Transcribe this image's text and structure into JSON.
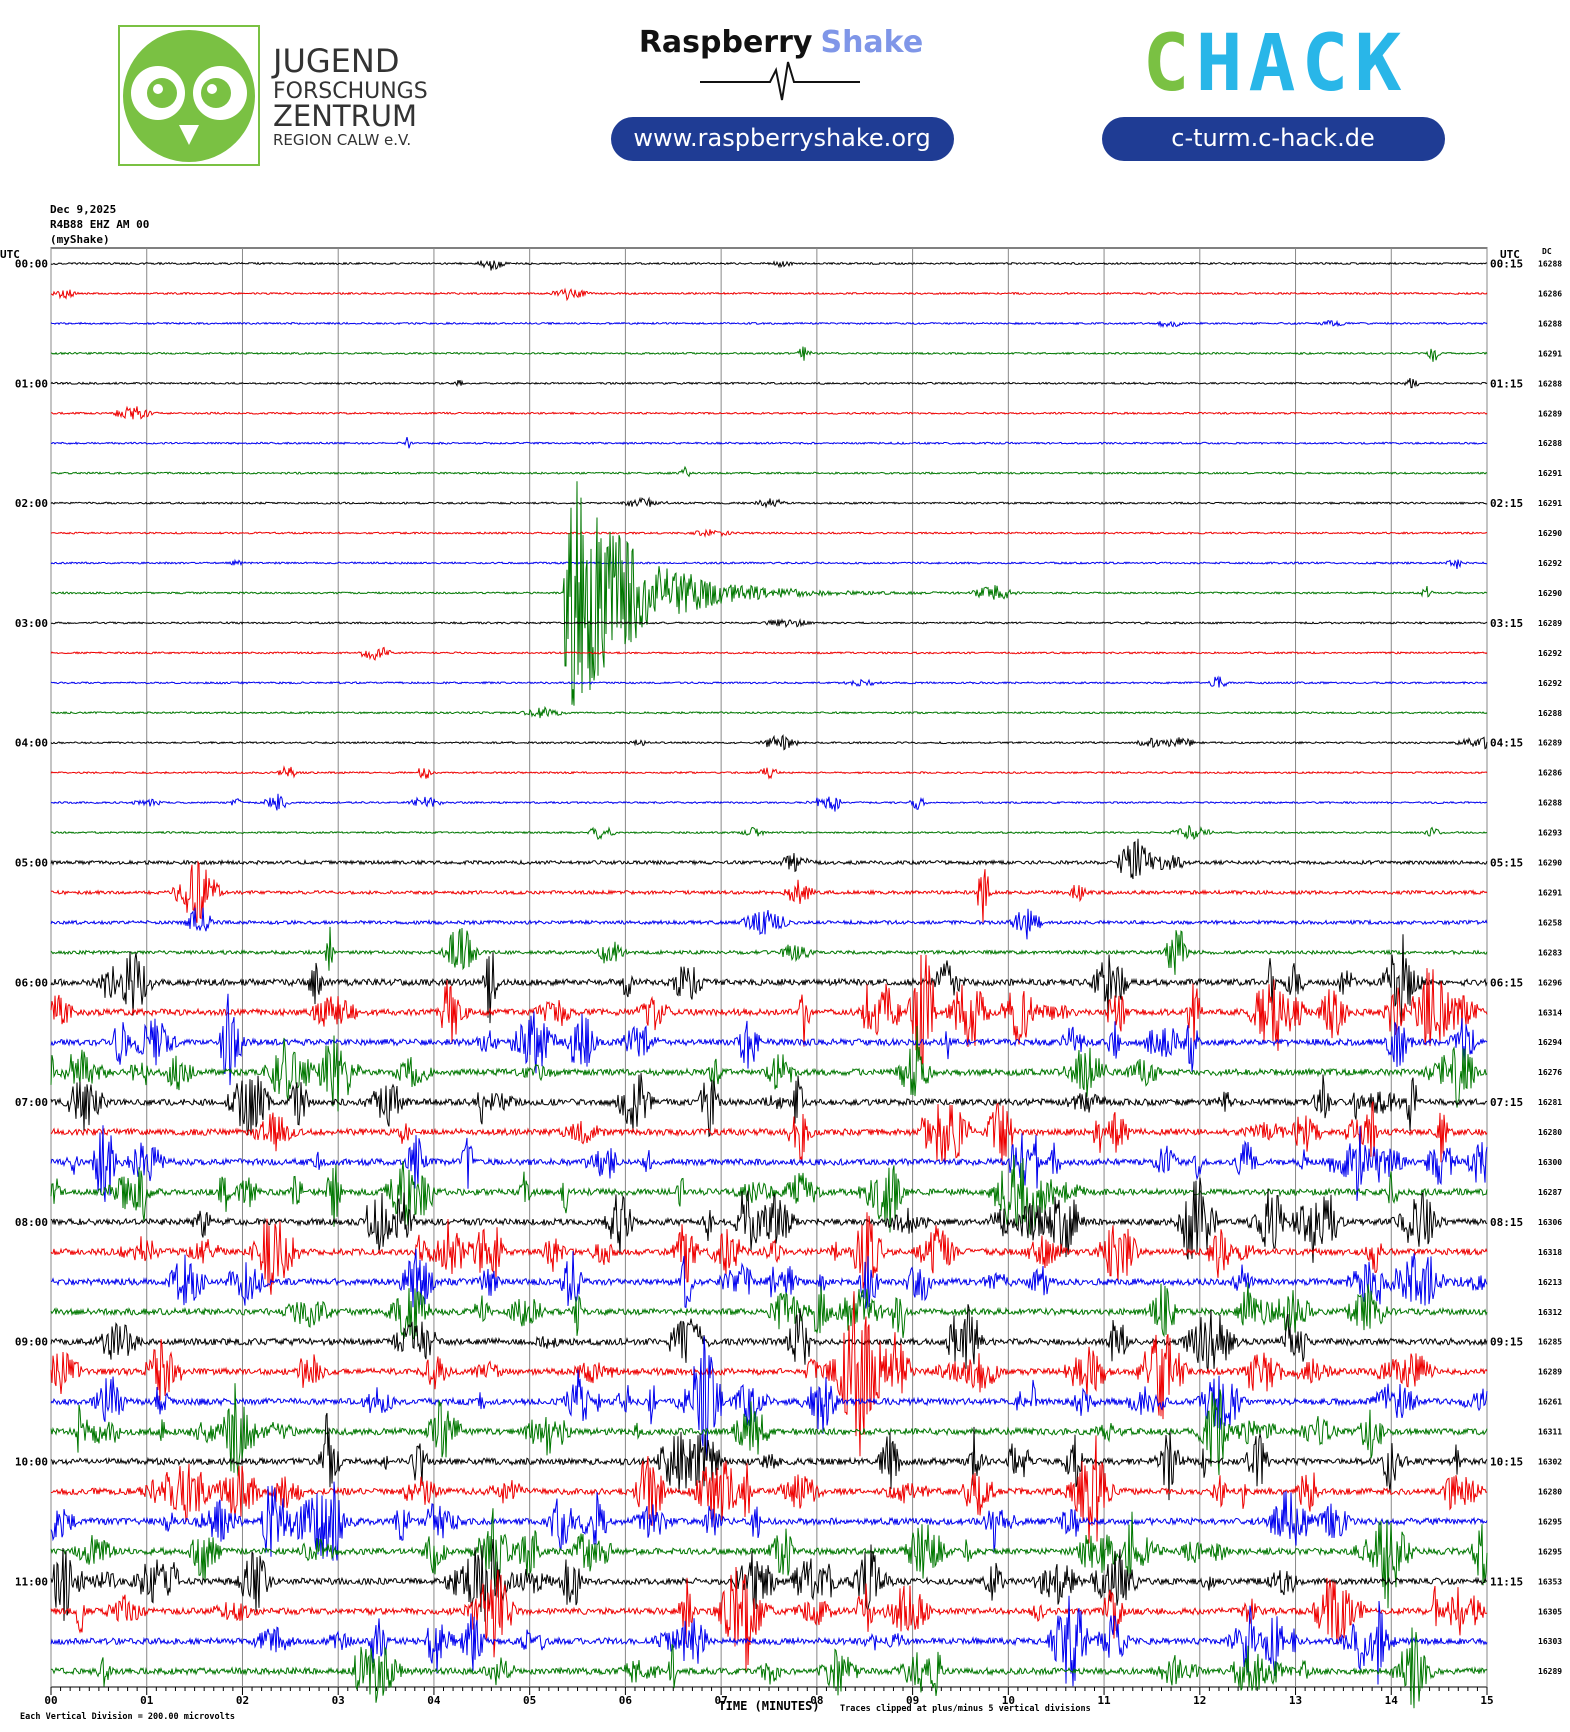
{
  "header": {
    "jfz": {
      "line1": "JUGEND",
      "line2": "FORSCHUNGS",
      "line3": "ZENTRUM",
      "line4": "REGION CALW e.V."
    },
    "rs": {
      "word1": "Raspberry",
      "word2": "Shake",
      "url": "www.raspberryshake.org"
    },
    "chack": {
      "c": "C",
      "hack": "HACK",
      "url": "c-turm.c-hack.de"
    }
  },
  "plot": {
    "date": "Dec 9,2025",
    "station": "R4B88 EHZ AM 00",
    "source": "(myShake)",
    "left_unit": "UTC",
    "right_unit": "UTC",
    "dc_unit": "DC",
    "left_times": [
      "00:00",
      "01:00",
      "02:00",
      "03:00",
      "04:00",
      "05:00",
      "06:00",
      "07:00",
      "08:00",
      "09:00",
      "10:00",
      "11:00"
    ],
    "right_times": [
      "00:15",
      "01:15",
      "02:15",
      "03:15",
      "04:15",
      "05:15",
      "06:15",
      "07:15",
      "08:15",
      "09:15",
      "10:15",
      "11:15"
    ],
    "dc": [
      16288,
      16286,
      16288,
      16291,
      16288,
      16289,
      16288,
      16291,
      16291,
      16290,
      16292,
      16290,
      16289,
      16292,
      16292,
      16288,
      16289,
      16286,
      16288,
      16293,
      16290,
      16291,
      16258,
      16283,
      16296,
      16314,
      16294,
      16276,
      16281,
      16280,
      16300,
      16287,
      16306,
      16318,
      16213,
      16312,
      16285,
      16289,
      16261,
      16311,
      16302,
      16280,
      16295,
      16295,
      16353,
      16305,
      16303,
      16289
    ],
    "minutes": [
      "00",
      "01",
      "02",
      "03",
      "04",
      "05",
      "06",
      "07",
      "08",
      "09",
      "10",
      "11",
      "12",
      "13",
      "14",
      "15"
    ],
    "x_label": "TIME (MINUTES)",
    "scale_note": "Each Vertical Division = 200.00 microvolts",
    "clip_note": "Traces clipped at plus/minus 5 vertical divisions"
  }
}
